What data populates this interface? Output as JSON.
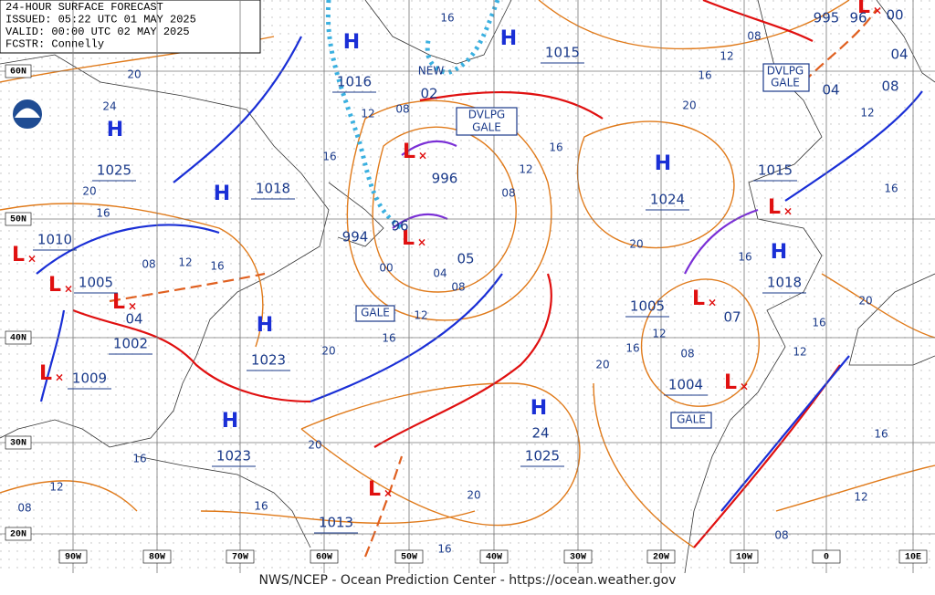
{
  "header": {
    "lines": [
      "24-HOUR SURFACE FORECAST",
      "ISSUED: 05:22 UTC 01 MAY 2025",
      "VALID: 00:00 UTC 02 MAY 2025",
      "FCSTR: Connelly"
    ]
  },
  "footer": "NWS/NCEP - Ocean Prediction Center - https://ocean.weather.gov",
  "latitude_labels": [
    "60N",
    "50N",
    "40N",
    "30N",
    "20N"
  ],
  "longitude_labels": [
    "90W",
    "80W",
    "70W",
    "60W",
    "50W",
    "40W",
    "30W",
    "20W",
    "10W",
    "0",
    "10E"
  ],
  "pressure_centers": [
    "H",
    "H",
    "H",
    "H",
    "L",
    "L",
    "L",
    "L",
    "H",
    "H",
    "L",
    "L",
    "L",
    "H",
    "H",
    "L",
    "L",
    "H",
    "L",
    "L"
  ],
  "pressure_values": [
    "1016",
    "1015",
    "1025",
    "1018",
    "1010",
    "1005",
    "04",
    "1002",
    "1009",
    "1023",
    "1023",
    "1013",
    "996",
    "994",
    "96",
    "05",
    "02",
    "1024",
    "24",
    "1025",
    "1005",
    "07",
    "1004",
    "1018",
    "1015",
    "995",
    "04",
    "96",
    "00",
    "04",
    "08"
  ],
  "annotations": [
    "NEW",
    "DVLPG",
    "GALE",
    "GALE",
    "GALE",
    "DVLPG",
    "GALE"
  ],
  "isobar_labels": [
    "20",
    "24",
    "16",
    "08",
    "12",
    "16",
    "20",
    "12",
    "16",
    "12",
    "08",
    "16",
    "16",
    "12",
    "08",
    "20",
    "16",
    "08",
    "12",
    "16",
    "00",
    "04",
    "08",
    "12",
    "16",
    "20",
    "16",
    "20",
    "12",
    "08",
    "20",
    "16",
    "12",
    "16",
    "20",
    "16",
    "12",
    "08",
    "20",
    "16",
    "12",
    "08",
    "16",
    "20",
    "16"
  ]
}
